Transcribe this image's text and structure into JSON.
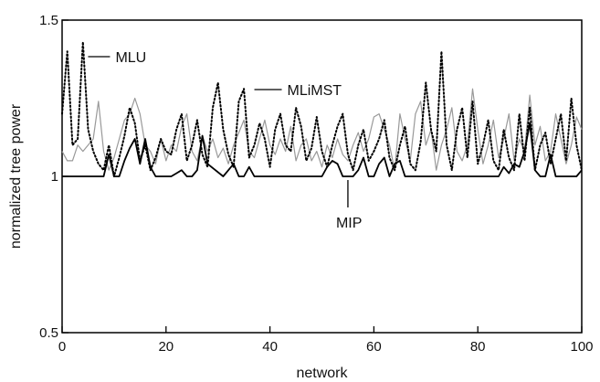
{
  "chart_data": {
    "type": "line",
    "xlabel": "network",
    "ylabel": "normalized tree power",
    "xlim": [
      0,
      100
    ],
    "ylim": [
      0.5,
      1.5
    ],
    "x_ticks": [
      0,
      20,
      40,
      60,
      80,
      100
    ],
    "y_ticks": [
      0.5,
      1,
      1.5
    ],
    "x_tick_labels": [
      "0",
      "20",
      "40",
      "60",
      "80",
      "100"
    ],
    "y_tick_labels": [
      "0.5",
      "1",
      "1.5"
    ],
    "grid": false,
    "legend": "none",
    "series": [
      {
        "name": "MIP",
        "style": "solid",
        "color": "#000000",
        "x": [
          0,
          7,
          8,
          9,
          10,
          11,
          12,
          13,
          14,
          15,
          16,
          17,
          18,
          21,
          22,
          23,
          24,
          25,
          26,
          27,
          28,
          31,
          32,
          33,
          34,
          35,
          36,
          37,
          38,
          49,
          50,
          51,
          52,
          53,
          54,
          55,
          56,
          57,
          58,
          59,
          60,
          61,
          62,
          63,
          64,
          65,
          66,
          67,
          84,
          85,
          86,
          87,
          88,
          89,
          90,
          91,
          92,
          93,
          94,
          95,
          96,
          99,
          100
        ],
        "y": [
          1,
          1,
          1,
          1.07,
          1,
          1,
          1.05,
          1.09,
          1.12,
          1.04,
          1.12,
          1.03,
          1,
          1,
          1.01,
          1.02,
          1,
          1,
          1.02,
          1.13,
          1.04,
          1,
          1.02,
          1.04,
          1,
          1,
          1.03,
          1,
          1,
          1,
          1,
          1.03,
          1.05,
          1.04,
          1,
          1,
          1,
          1.02,
          1.06,
          1,
          1,
          1.04,
          1.06,
          1,
          1.04,
          1.05,
          1,
          1,
          1,
          1.03,
          1.01,
          1.04,
          1.03,
          1.08,
          1.17,
          1.02,
          1,
          1,
          1.07,
          1,
          1,
          1,
          1.02
        ]
      },
      {
        "name": "MLU",
        "style": "dotted",
        "color": "#000000",
        "x": [
          0,
          1,
          2,
          3,
          4,
          5,
          6,
          7,
          8,
          9,
          10,
          11,
          12,
          13,
          14,
          15,
          16,
          17,
          18,
          19,
          20,
          21,
          22,
          23,
          24,
          25,
          26,
          27,
          28,
          29,
          30,
          31,
          32,
          33,
          34,
          35,
          36,
          37,
          38,
          39,
          40,
          41,
          42,
          43,
          44,
          45,
          46,
          47,
          48,
          49,
          50,
          51,
          52,
          53,
          54,
          55,
          56,
          57,
          58,
          59,
          60,
          61,
          62,
          63,
          64,
          65,
          66,
          67,
          68,
          69,
          70,
          71,
          72,
          73,
          74,
          75,
          76,
          77,
          78,
          79,
          80,
          81,
          82,
          83,
          84,
          85,
          86,
          87,
          88,
          89,
          90,
          91,
          92,
          93,
          94,
          95,
          96,
          97,
          98,
          99,
          100
        ],
        "y": [
          1.2,
          1.4,
          1.1,
          1.12,
          1.43,
          1.15,
          1.08,
          1.04,
          1.02,
          1.1,
          1.0,
          1.06,
          1.13,
          1.22,
          1.17,
          1.05,
          1.1,
          1.02,
          1.06,
          1.12,
          1.08,
          1.07,
          1.15,
          1.2,
          1.05,
          1.1,
          1.18,
          1.07,
          1.03,
          1.22,
          1.3,
          1.15,
          1.07,
          1.03,
          1.24,
          1.28,
          1.06,
          1.1,
          1.17,
          1.12,
          1.03,
          1.15,
          1.2,
          1.1,
          1.08,
          1.22,
          1.16,
          1.05,
          1.09,
          1.19,
          1.08,
          1.03,
          1.1,
          1.16,
          1.2,
          1.07,
          1.02,
          1.1,
          1.15,
          1.05,
          1.08,
          1.12,
          1.18,
          1.06,
          1.02,
          1.1,
          1.16,
          1.04,
          1.02,
          1.11,
          1.3,
          1.15,
          1.08,
          1.4,
          1.1,
          1.02,
          1.15,
          1.22,
          1.06,
          1.24,
          1.04,
          1.1,
          1.18,
          1.05,
          1.02,
          1.15,
          1.06,
          1.02,
          1.2,
          1.05,
          1.22,
          1.02,
          1.1,
          1.14,
          1.04,
          1.12,
          1.2,
          1.05,
          1.25,
          1.1,
          1.02
        ]
      },
      {
        "name": "MLiMST",
        "style": "solid",
        "color": "#999999",
        "x": [
          0,
          1,
          2,
          3,
          4,
          5,
          6,
          7,
          8,
          9,
          10,
          11,
          12,
          13,
          14,
          15,
          16,
          17,
          18,
          19,
          20,
          21,
          22,
          23,
          24,
          25,
          26,
          27,
          28,
          29,
          30,
          31,
          32,
          33,
          34,
          35,
          36,
          37,
          38,
          39,
          40,
          41,
          42,
          43,
          44,
          45,
          46,
          47,
          48,
          49,
          50,
          51,
          52,
          53,
          54,
          55,
          56,
          57,
          58,
          59,
          60,
          61,
          62,
          63,
          64,
          65,
          66,
          67,
          68,
          69,
          70,
          71,
          72,
          73,
          74,
          75,
          76,
          77,
          78,
          79,
          80,
          81,
          82,
          83,
          84,
          85,
          86,
          87,
          88,
          89,
          90,
          91,
          92,
          93,
          94,
          95,
          96,
          97,
          98,
          99,
          100
        ],
        "y": [
          1.08,
          1.05,
          1.05,
          1.1,
          1.08,
          1.1,
          1.12,
          1.24,
          1.08,
          1.02,
          1.06,
          1.12,
          1.18,
          1.2,
          1.25,
          1.2,
          1.1,
          1.08,
          1.04,
          1.12,
          1.05,
          1.1,
          1.08,
          1.16,
          1.2,
          1.08,
          1.05,
          1.13,
          1.08,
          1.12,
          1.06,
          1.09,
          1.04,
          1.1,
          1.14,
          1.18,
          1.08,
          1.06,
          1.12,
          1.18,
          1.1,
          1.07,
          1.12,
          1.08,
          1.16,
          1.05,
          1.1,
          1.12,
          1.05,
          1.08,
          1.03,
          1.1,
          1.06,
          1.12,
          1.07,
          1.05,
          1.1,
          1.14,
          1.08,
          1.12,
          1.19,
          1.2,
          1.15,
          1.1,
          1.02,
          1.2,
          1.12,
          1.05,
          1.2,
          1.24,
          1.1,
          1.15,
          1.02,
          1.1,
          1.15,
          1.22,
          1.08,
          1.05,
          1.1,
          1.28,
          1.15,
          1.04,
          1.1,
          1.18,
          1.06,
          1.12,
          1.2,
          1.05,
          1.12,
          1.08,
          1.26,
          1.1,
          1.16,
          1.05,
          1.08,
          1.2,
          1.12,
          1.04,
          1.1,
          1.19,
          1.15
        ]
      }
    ],
    "annotations": [
      {
        "text": "MLU",
        "series": "MLU"
      },
      {
        "text": "MLiMST",
        "series": "MLiMST"
      },
      {
        "text": "MIP",
        "series": "MIP"
      }
    ]
  }
}
